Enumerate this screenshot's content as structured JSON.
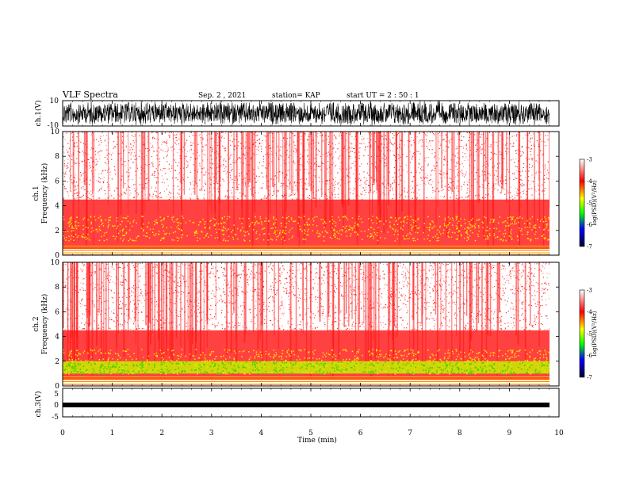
{
  "header": {
    "title": "VLF Spectra",
    "date": "Sep. 2  , 2021",
    "station": "station= KAP",
    "start": "start  UT  =   2  : 50 : 1"
  },
  "colors": {
    "high": "#ff0000",
    "mid": "#ffff00",
    "low": "#00cc00"
  },
  "chart_data": {
    "type": "heatmap",
    "xlabel": "Time  (min)",
    "xlim": [
      0,
      10
    ],
    "x_ticks": [
      "0",
      "1",
      "2",
      "3",
      "4",
      "5",
      "6",
      "7",
      "8",
      "9",
      "10"
    ],
    "panels": [
      {
        "ylabel": "ch.1(V)",
        "ylim": [
          -10,
          10
        ],
        "y_ticks": [
          "10",
          "-10"
        ],
        "kind": "waveform"
      },
      {
        "ylabel_top": "ch.1",
        "ylabel": "Frequency  (kHz)",
        "ylim": [
          0,
          10
        ],
        "y_ticks": [
          "10",
          "8",
          "6",
          "4",
          "2",
          "0"
        ],
        "kind": "spectrogram",
        "colorbar": {
          "label": "log(PSD)(V²/Hz)",
          "range": [
            -7,
            -3
          ],
          "ticks": [
            "-3",
            "-4",
            "-5",
            "-6",
            "-7"
          ]
        }
      },
      {
        "ylabel_top": "ch.2",
        "ylabel": "Frequency  (kHz)",
        "ylim": [
          0,
          10
        ],
        "y_ticks": [
          "10",
          "8",
          "6",
          "4",
          "2",
          "0"
        ],
        "kind": "spectrogram",
        "colorbar": {
          "label": "log(PSD)(V²/Hz)",
          "range": [
            -7,
            -3
          ],
          "ticks": [
            "-3",
            "-4",
            "-5",
            "-6",
            "-7"
          ]
        }
      },
      {
        "ylabel": "ch.3(V)",
        "ylim": [
          -5,
          5
        ],
        "y_ticks": [
          "5",
          "0",
          "-5"
        ],
        "kind": "waveform"
      }
    ]
  }
}
